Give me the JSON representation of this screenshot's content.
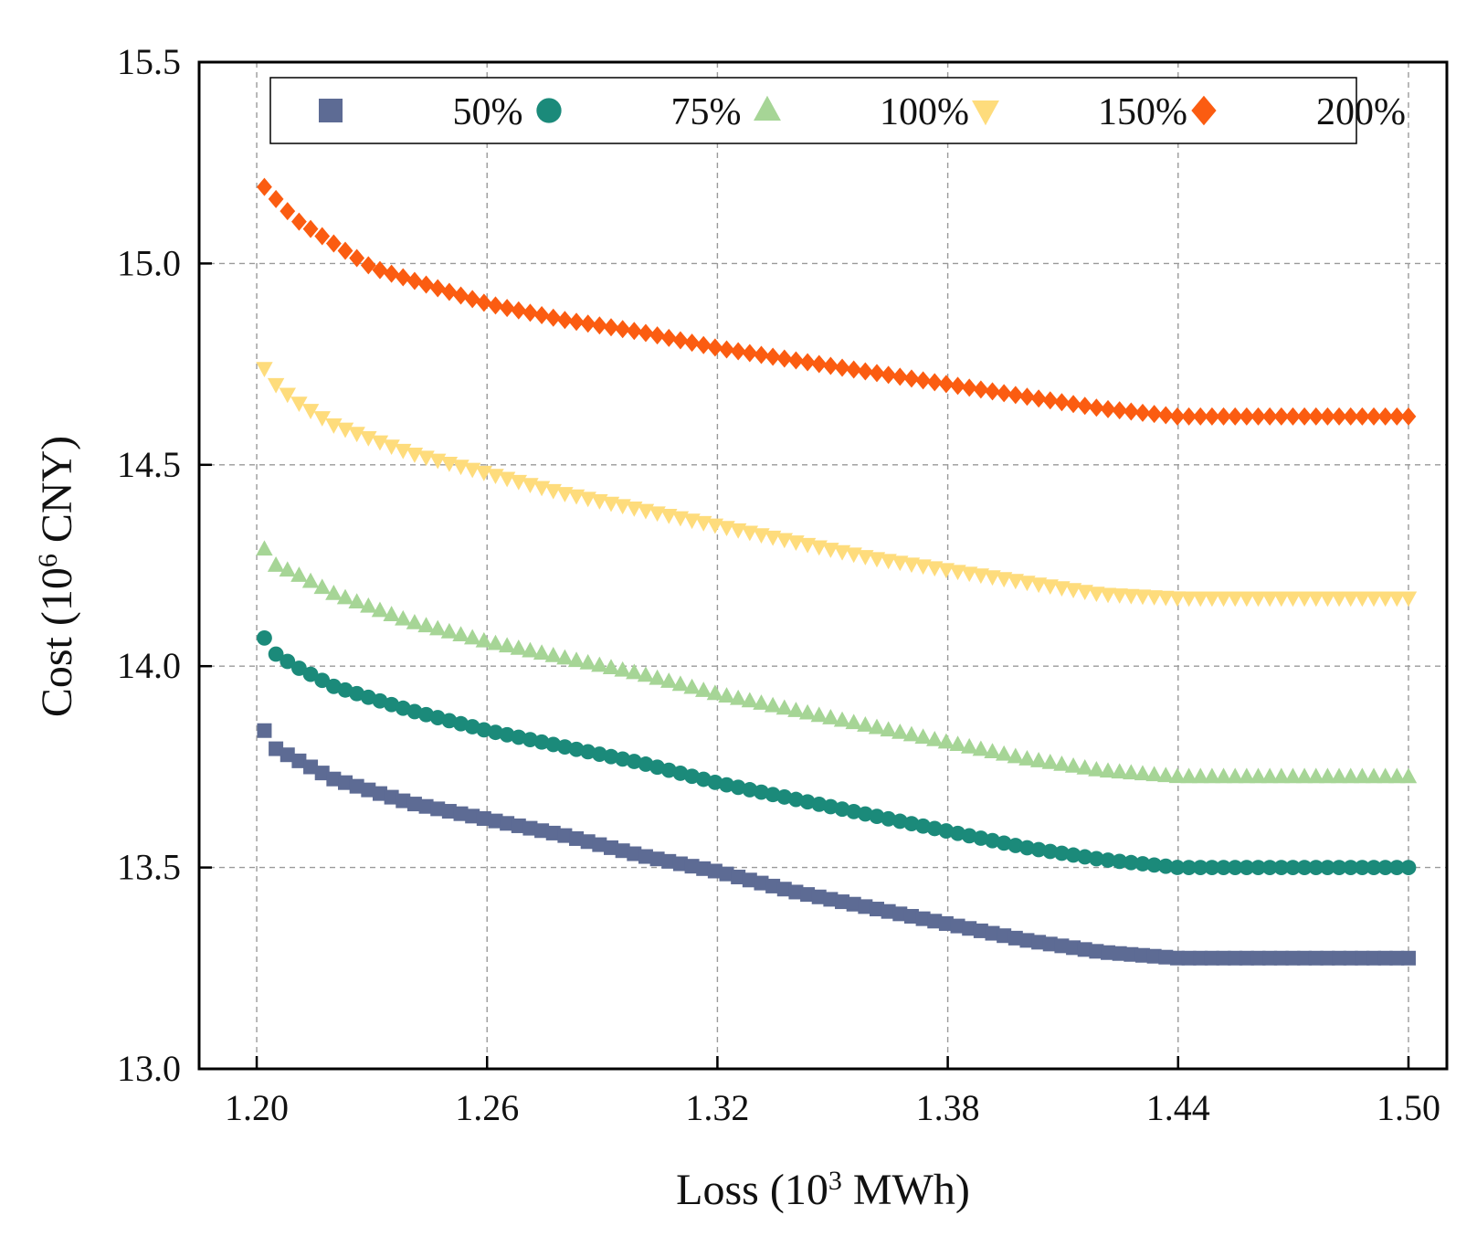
{
  "chart_data": {
    "type": "scatter",
    "title": "",
    "xlabel": {
      "prefix": "Loss (10",
      "sup": "3",
      "suffix": " MWh)"
    },
    "ylabel": {
      "prefix": "Cost (10",
      "sup": "6",
      "suffix": " CNY)"
    },
    "xlim": [
      1.185,
      1.51
    ],
    "ylim": [
      13.0,
      15.5
    ],
    "xticks": [
      1.2,
      1.26,
      1.32,
      1.38,
      1.44,
      1.5
    ],
    "xtick_labels": [
      "1.20",
      "1.26",
      "1.32",
      "1.38",
      "1.44",
      "1.50"
    ],
    "yticks": [
      13.0,
      13.5,
      14.0,
      14.5,
      15.0,
      15.5
    ],
    "ytick_labels": [
      "13.0",
      "13.5",
      "14.0",
      "14.5",
      "15.0",
      "15.5"
    ],
    "grid": true,
    "legend_position": "top",
    "n_points": 100,
    "x_range": [
      1.202,
      1.5
    ],
    "series": [
      {
        "name": "50%",
        "marker": "square",
        "color": "#5d6b94",
        "points": [
          [
            1.202,
            13.84
          ],
          [
            1.204,
            13.8
          ],
          [
            1.21,
            13.77
          ],
          [
            1.22,
            13.72
          ],
          [
            1.24,
            13.66
          ],
          [
            1.26,
            13.62
          ],
          [
            1.28,
            13.58
          ],
          [
            1.3,
            13.53
          ],
          [
            1.32,
            13.49
          ],
          [
            1.34,
            13.44
          ],
          [
            1.36,
            13.4
          ],
          [
            1.38,
            13.36
          ],
          [
            1.4,
            13.32
          ],
          [
            1.42,
            13.29
          ],
          [
            1.44,
            13.275
          ],
          [
            1.5,
            13.275
          ]
        ]
      },
      {
        "name": "75%",
        "marker": "circle",
        "color": "#1b8a7a",
        "points": [
          [
            1.202,
            14.07
          ],
          [
            1.205,
            14.03
          ],
          [
            1.21,
            14.0
          ],
          [
            1.22,
            13.95
          ],
          [
            1.24,
            13.89
          ],
          [
            1.26,
            13.84
          ],
          [
            1.28,
            13.8
          ],
          [
            1.3,
            13.76
          ],
          [
            1.32,
            13.71
          ],
          [
            1.34,
            13.67
          ],
          [
            1.36,
            13.63
          ],
          [
            1.38,
            13.59
          ],
          [
            1.4,
            13.55
          ],
          [
            1.42,
            13.52
          ],
          [
            1.44,
            13.5
          ],
          [
            1.5,
            13.5
          ]
        ]
      },
      {
        "name": "100%",
        "marker": "triangle-up",
        "color": "#a6d596",
        "points": [
          [
            1.202,
            14.29
          ],
          [
            1.205,
            14.25
          ],
          [
            1.21,
            14.23
          ],
          [
            1.22,
            14.18
          ],
          [
            1.24,
            14.11
          ],
          [
            1.26,
            14.06
          ],
          [
            1.28,
            14.02
          ],
          [
            1.3,
            13.98
          ],
          [
            1.32,
            13.93
          ],
          [
            1.34,
            13.89
          ],
          [
            1.36,
            13.85
          ],
          [
            1.38,
            13.81
          ],
          [
            1.4,
            13.77
          ],
          [
            1.42,
            13.74
          ],
          [
            1.44,
            13.725
          ],
          [
            1.5,
            13.725
          ]
        ]
      },
      {
        "name": "150%",
        "marker": "triangle-down",
        "color": "#fedc7c",
        "points": [
          [
            1.202,
            14.74
          ],
          [
            1.205,
            14.7
          ],
          [
            1.21,
            14.66
          ],
          [
            1.22,
            14.6
          ],
          [
            1.24,
            14.53
          ],
          [
            1.26,
            14.48
          ],
          [
            1.28,
            14.43
          ],
          [
            1.3,
            14.39
          ],
          [
            1.32,
            14.35
          ],
          [
            1.34,
            14.31
          ],
          [
            1.36,
            14.27
          ],
          [
            1.38,
            14.24
          ],
          [
            1.4,
            14.21
          ],
          [
            1.42,
            14.18
          ],
          [
            1.44,
            14.17
          ],
          [
            1.5,
            14.17
          ]
        ]
      },
      {
        "name": "200%",
        "marker": "diamond",
        "color": "#fb5c11",
        "points": [
          [
            1.202,
            15.19
          ],
          [
            1.205,
            15.16
          ],
          [
            1.21,
            15.11
          ],
          [
            1.22,
            15.05
          ],
          [
            1.23,
            14.99
          ],
          [
            1.24,
            14.96
          ],
          [
            1.26,
            14.9
          ],
          [
            1.28,
            14.86
          ],
          [
            1.3,
            14.83
          ],
          [
            1.32,
            14.79
          ],
          [
            1.34,
            14.76
          ],
          [
            1.36,
            14.73
          ],
          [
            1.38,
            14.7
          ],
          [
            1.4,
            14.67
          ],
          [
            1.42,
            14.64
          ],
          [
            1.44,
            14.62
          ],
          [
            1.5,
            14.62
          ]
        ]
      }
    ]
  }
}
